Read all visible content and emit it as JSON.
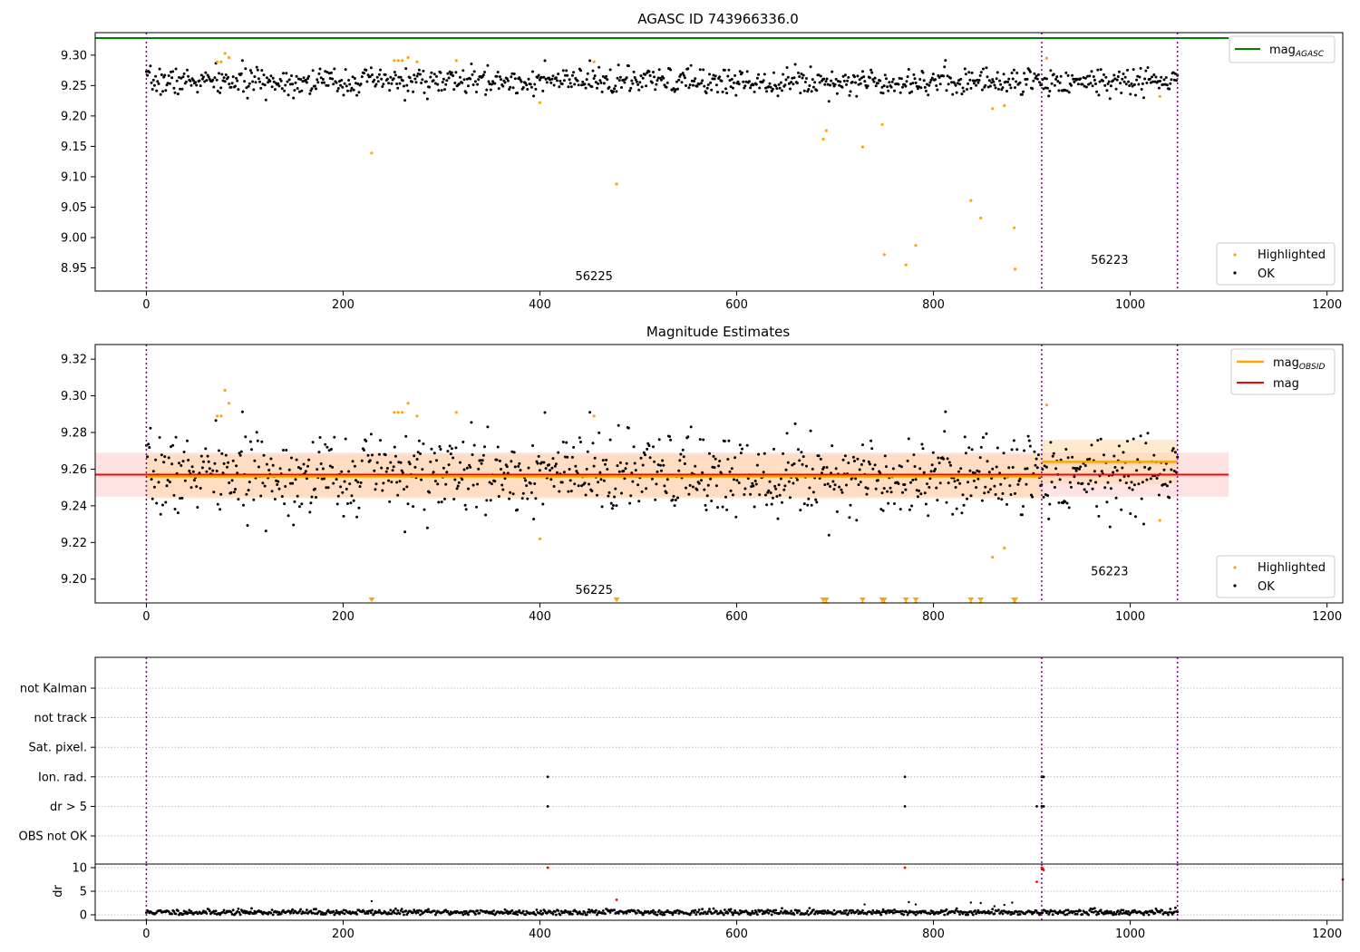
{
  "chart_data": [
    {
      "type": "scatter",
      "title": "AGASC ID 743966336.0",
      "xlabel": "",
      "ylabel": "",
      "xlim": [
        -52,
        1216
      ],
      "ylim": [
        8.912,
        9.337
      ],
      "xticks": [
        0,
        200,
        400,
        600,
        800,
        1000,
        1200
      ],
      "xtick_labels": [
        "0",
        "200",
        "400",
        "600",
        "800",
        "1000",
        "1200"
      ],
      "yticks": [
        8.95,
        9.0,
        9.05,
        9.1,
        9.15,
        9.2,
        9.25,
        9.3
      ],
      "ytick_labels": [
        "8.95",
        "9.00",
        "9.05",
        "9.10",
        "9.15",
        "9.20",
        "9.25",
        "9.30"
      ],
      "grid": false,
      "obsid_boundaries": [
        0,
        910,
        1048
      ],
      "obsid_labels": [
        {
          "text": "56225",
          "x": 455,
          "y": 8.93
        },
        {
          "text": "56223",
          "x": 979,
          "y": 8.957
        }
      ],
      "reference_line": {
        "name": "mag",
        "subscript": "AGASC",
        "y": 9.328,
        "x_range": [
          -52,
          1100
        ],
        "color": "#008000"
      },
      "ok_band": {
        "x_range": [
          0,
          1048
        ],
        "center": 9.257,
        "spread": 0.012
      },
      "series": [
        {
          "name": "Highlighted",
          "color": "#ffa500",
          "x": [
            72,
            76,
            80,
            84,
            229,
            252,
            256,
            260,
            266,
            275,
            315,
            400,
            455,
            478,
            688,
            691,
            728,
            748,
            750,
            772,
            782,
            838,
            848,
            860,
            872,
            882,
            883,
            915,
            1030
          ],
          "y": [
            9.289,
            9.289,
            9.303,
            9.296,
            9.139,
            9.291,
            9.291,
            9.291,
            9.296,
            9.289,
            9.291,
            9.222,
            9.289,
            9.088,
            9.162,
            9.176,
            9.149,
            9.186,
            8.972,
            8.955,
            8.987,
            9.061,
            9.032,
            9.212,
            9.217,
            9.016,
            8.948,
            9.295,
            9.232
          ]
        },
        {
          "name": "OK",
          "color": "#000000",
          "seed": 7,
          "count": 1010,
          "x_range": [
            0,
            1048
          ],
          "y_center": 9.257,
          "y_spread": 0.011
        }
      ],
      "legend": {
        "placement": "upper-right",
        "entries": [
          "mag_AGASC"
        ]
      },
      "legend2": {
        "placement": "lower-right",
        "entries": [
          "Highlighted",
          "OK"
        ]
      }
    },
    {
      "type": "scatter",
      "title": "Magnitude Estimates",
      "xlabel": "",
      "ylabel": "",
      "xlim": [
        -52,
        1216
      ],
      "ylim": [
        9.187,
        9.328
      ],
      "xticks": [
        0,
        200,
        400,
        600,
        800,
        1000,
        1200
      ],
      "xtick_labels": [
        "0",
        "200",
        "400",
        "600",
        "800",
        "1000",
        "1200"
      ],
      "yticks": [
        9.2,
        9.22,
        9.24,
        9.26,
        9.28,
        9.3,
        9.32
      ],
      "ytick_labels": [
        "9.20",
        "9.22",
        "9.24",
        "9.26",
        "9.28",
        "9.30",
        "9.32"
      ],
      "grid": false,
      "obsid_boundaries": [
        0,
        910,
        1048
      ],
      "obsid_labels": [
        {
          "text": "56225",
          "x": 455,
          "y": 9.192
        },
        {
          "text": "56223",
          "x": 979,
          "y": 9.202
        }
      ],
      "bands": [
        {
          "name": "mag",
          "color": "#ff0000",
          "fill": "#ffcccc",
          "center": 9.257,
          "low": 9.245,
          "high": 9.269,
          "x_range": [
            -52,
            1100
          ]
        },
        {
          "name": "mag_OBSID",
          "color": "#ffa500",
          "fill": "#ffd9a8",
          "segments": [
            {
              "x_range": [
                0,
                910
              ],
              "center": 9.256,
              "low": 9.244,
              "high": 9.268
            },
            {
              "x_range": [
                910,
                1048
              ],
              "center": 9.264,
              "low": 9.252,
              "high": 9.276
            }
          ]
        }
      ],
      "series": [
        {
          "name": "Highlighted",
          "color": "#ffa500",
          "x": [
            72,
            76,
            80,
            84,
            252,
            256,
            260,
            266,
            275,
            315,
            400,
            455,
            688,
            691,
            728,
            748,
            750,
            772,
            782,
            838,
            848,
            860,
            872,
            882,
            883,
            915,
            1030
          ],
          "y": [
            9.289,
            9.289,
            9.303,
            9.296,
            9.291,
            9.291,
            9.291,
            9.296,
            9.289,
            9.291,
            9.222,
            9.289,
            9.187,
            9.187,
            9.187,
            9.187,
            9.187,
            9.187,
            9.187,
            9.187,
            9.187,
            9.212,
            9.217,
            9.187,
            9.187,
            9.295,
            9.232
          ]
        },
        {
          "name": "OK",
          "color": "#000000",
          "seed": 7,
          "count": 1010,
          "x_range": [
            0,
            1048
          ],
          "y_center": 9.257,
          "y_spread": 0.011
        }
      ],
      "below_range_markers": {
        "color": "#ffa500",
        "x": [
          229,
          478,
          688,
          691,
          728,
          748,
          750,
          772,
          782,
          838,
          848,
          882,
          883
        ]
      },
      "legend": {
        "placement": "upper-right",
        "entries": [
          "mag_OBSID",
          "mag"
        ]
      },
      "legend2": {
        "placement": "lower-right",
        "entries": [
          "Highlighted",
          "OK"
        ]
      }
    },
    {
      "type": "scatter",
      "title": "",
      "xlabel": "",
      "ylabel": "",
      "xlim": [
        -52,
        1216
      ],
      "categories": [
        "not Kalman",
        "not track",
        "Sat. pixel.",
        "Ion. rad.",
        "dr > 5",
        "OBS not OK"
      ],
      "grid": true,
      "obsid_boundaries": [
        0,
        910,
        1048
      ],
      "flags": [
        {
          "category": "Ion. rad.",
          "x": [
            408,
            771,
            910,
            911,
            912
          ]
        },
        {
          "category": "dr > 5",
          "x": [
            408,
            771,
            905,
            910,
            912
          ]
        }
      ]
    },
    {
      "type": "scatter",
      "title": "",
      "xlabel": "",
      "ylabel": "dr",
      "xlim": [
        -52,
        1216
      ],
      "ylim": [
        -0.5,
        10.5
      ],
      "xticks": [
        0,
        200,
        400,
        600,
        800,
        1000,
        1200
      ],
      "xtick_labels": [
        "0",
        "200",
        "400",
        "600",
        "800",
        "1000",
        "1200"
      ],
      "yticks": [
        0,
        5,
        10
      ],
      "ytick_labels": [
        "0",
        "5",
        "10"
      ],
      "grid": true,
      "obsid_boundaries": [
        0,
        910,
        1048
      ],
      "series": [
        {
          "name": "Highlighted",
          "color": "#ff0000",
          "x": [
            408,
            478,
            771,
            905,
            910,
            911,
            912,
            1216
          ],
          "y": [
            10,
            3.2,
            10,
            7,
            10,
            9.8,
            9.5,
            7.5
          ]
        },
        {
          "name": "OK",
          "color": "#000000",
          "seed": 11,
          "count": 1010,
          "x_range": [
            0,
            1048
          ],
          "y_center": 0.55,
          "y_spread": 0.3,
          "extra_x": [
            229,
            730,
            775,
            782,
            838,
            848,
            862,
            872,
            880
          ],
          "extra_y": [
            2.9,
            2.2,
            2.7,
            2.2,
            2.6,
            2.5,
            1.8,
            2.1,
            2.6
          ]
        }
      ]
    }
  ]
}
